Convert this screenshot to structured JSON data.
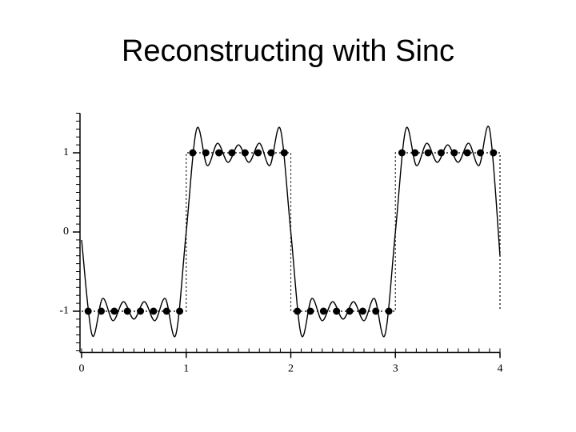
{
  "chart_data": {
    "type": "line",
    "title": "Reconstructing with Sinc",
    "xlim": [
      0,
      4
    ],
    "ylim": [
      -1.5,
      1.5
    ],
    "xticks": [
      0,
      1,
      2,
      3,
      4
    ],
    "yticks": [
      -1,
      0,
      1
    ],
    "xminorticks": [
      0,
      0.1,
      0.2,
      0.3,
      0.4,
      0.5,
      0.6,
      0.7,
      0.8,
      0.9,
      1,
      1.1,
      1.2,
      1.3,
      1.4,
      1.5,
      1.6,
      1.7,
      1.8,
      1.9,
      2,
      2.1,
      2.2,
      2.3,
      2.4,
      2.5,
      2.6,
      2.7,
      2.8,
      2.9,
      3,
      3.1,
      3.2,
      3.3,
      3.4,
      3.5,
      3.6,
      3.7,
      3.8,
      3.9,
      4
    ],
    "yminorticks": [
      -1.5,
      -1.4,
      -1.3,
      -1.2,
      -1.1,
      -1,
      -0.9,
      -0.8,
      -0.7,
      -0.6,
      -0.5,
      -0.4,
      -0.3,
      -0.2,
      -0.1,
      0,
      0.1,
      0.2,
      0.3,
      0.4,
      0.5,
      0.6,
      0.7,
      0.8,
      0.9,
      1,
      1.1,
      1.2,
      1.3,
      1.4,
      1.5
    ],
    "series": [
      {
        "color": "#000000",
        "style": "smooth",
        "x": [
          0,
          0.1,
          0.2,
          0.3,
          0.4,
          0.5,
          0.6,
          0.7,
          0.8,
          0.9,
          1,
          1.1,
          1.2,
          1.3,
          1.4,
          1.5,
          1.6,
          1.7,
          1.8,
          1.9,
          2,
          2.1,
          2.2,
          2.3,
          2.4,
          2.5,
          2.6,
          2.7,
          2.8,
          2.9,
          3,
          3.1,
          3.2,
          3.3,
          3.4,
          3.5,
          3.6,
          3.7,
          3.8,
          3.9,
          4
        ],
        "values": [
          -0.1,
          -1.3,
          -0.84,
          -1.12,
          -0.88,
          -1.1,
          -0.88,
          -1.12,
          -0.84,
          -1.3,
          0,
          1.3,
          0.84,
          1.12,
          0.88,
          1.1,
          0.88,
          1.12,
          0.84,
          1.3,
          0,
          -1.3,
          -0.84,
          -1.12,
          -0.88,
          -1.1,
          -0.88,
          -1.12,
          -0.84,
          -1.3,
          0,
          1.3,
          0.84,
          1.12,
          0.88,
          1.1,
          0.88,
          1.12,
          0.84,
          1.3,
          -0.3
        ]
      },
      {
        "color": "#000000",
        "style": "dotted",
        "x": [
          0,
          1,
          1,
          2,
          2,
          3,
          3,
          4,
          4
        ],
        "values": [
          -1,
          -1,
          1,
          1,
          -1,
          -1,
          1,
          1,
          -1
        ]
      },
      {
        "color": "#000000",
        "style": "markers",
        "x": [
          0.0625,
          0.1875,
          0.3125,
          0.4375,
          0.5625,
          0.6875,
          0.8125,
          0.9375,
          1.0625,
          1.1875,
          1.3125,
          1.4375,
          1.5625,
          1.6875,
          1.8125,
          1.9375,
          2.0625,
          2.1875,
          2.3125,
          2.4375,
          2.5625,
          2.6875,
          2.8125,
          2.9375,
          3.0625,
          3.1875,
          3.3125,
          3.4375,
          3.5625,
          3.6875,
          3.8125,
          3.9375
        ],
        "values": [
          -1,
          -1,
          -1,
          -1,
          -1,
          -1,
          -1,
          -1,
          1,
          1,
          1,
          1,
          1,
          1,
          1,
          1,
          -1,
          -1,
          -1,
          -1,
          -1,
          -1,
          -1,
          -1,
          1,
          1,
          1,
          1,
          1,
          1,
          1,
          1
        ]
      }
    ]
  }
}
